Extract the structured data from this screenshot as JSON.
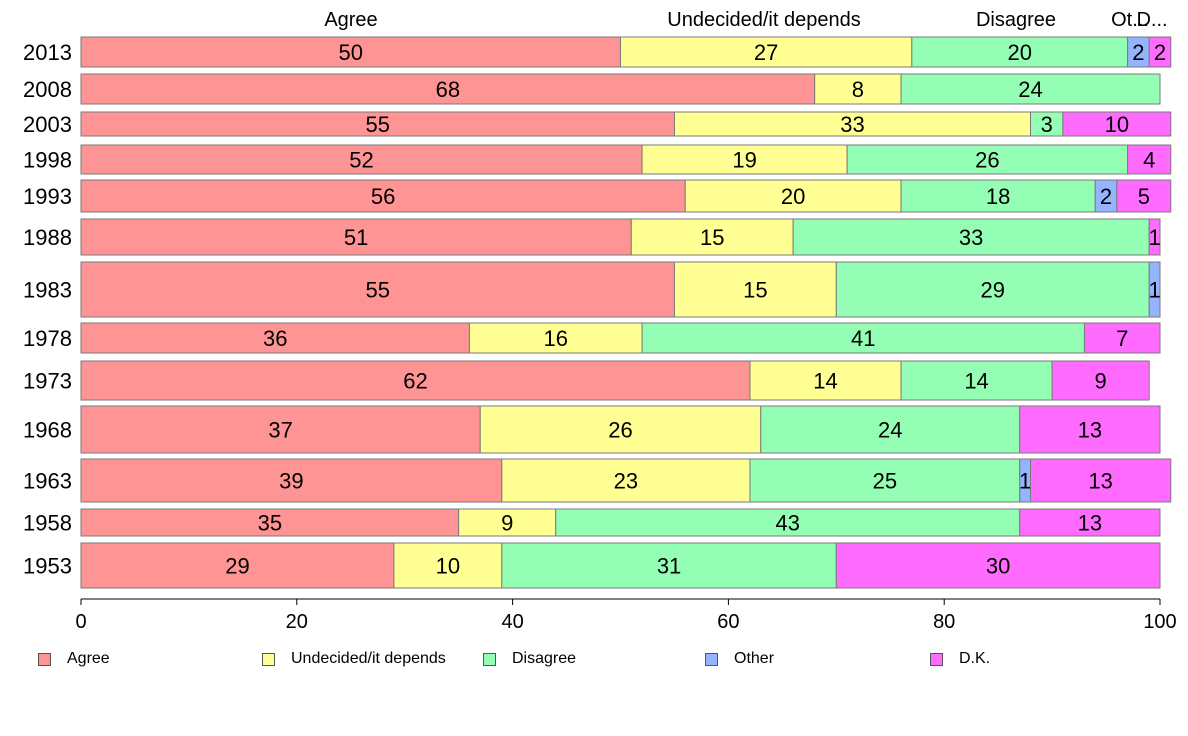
{
  "chart_data": {
    "type": "bar",
    "orientation": "horizontal",
    "stacked": true,
    "categories": [
      "2013",
      "2008",
      "2003",
      "1998",
      "1993",
      "1988",
      "1983",
      "1978",
      "1973",
      "1968",
      "1963",
      "1958",
      "1953"
    ],
    "series": [
      {
        "name": "Agree",
        "color": "#ff9494",
        "values": [
          50,
          68,
          55,
          52,
          56,
          51,
          55,
          36,
          62,
          37,
          39,
          35,
          29
        ]
      },
      {
        "name": "Undecided/it depends",
        "color": "#ffff94",
        "values": [
          27,
          8,
          33,
          19,
          20,
          15,
          15,
          16,
          14,
          26,
          23,
          9,
          10
        ]
      },
      {
        "name": "Disagree",
        "color": "#94ffb4",
        "values": [
          20,
          24,
          3,
          26,
          18,
          33,
          29,
          41,
          14,
          24,
          25,
          43,
          31
        ]
      },
      {
        "name": "Other",
        "color": "#94b4ff",
        "values": [
          2,
          0,
          0,
          0,
          2,
          0,
          1,
          0,
          0,
          0,
          1,
          0,
          0
        ]
      },
      {
        "name": "D.K.",
        "color": "#ff6bff",
        "values": [
          2,
          0,
          10,
          4,
          5,
          1,
          0,
          7,
          9,
          13,
          13,
          13,
          30
        ]
      }
    ],
    "top_labels": [
      "Agree",
      "Undecided/it depends",
      "Disagree",
      "Ot...",
      "D..."
    ],
    "xlim": [
      0,
      100
    ],
    "xticks": [
      0,
      20,
      40,
      60,
      80,
      100
    ],
    "legend_position": "bottom",
    "grid": false
  }
}
